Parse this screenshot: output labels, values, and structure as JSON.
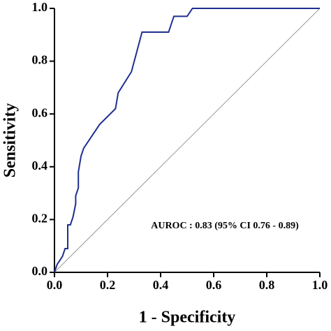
{
  "chart_data": {
    "type": "line",
    "x": [
      0,
      0.01,
      0.03,
      0.04,
      0.05,
      0.05,
      0.06,
      0.07,
      0.08,
      0.08,
      0.09,
      0.09,
      0.1,
      0.11,
      0.17,
      0.23,
      0.24,
      0.29,
      0.33,
      0.43,
      0.45,
      0.5,
      0.52,
      1.0
    ],
    "values": [
      0,
      0.03,
      0.06,
      0.09,
      0.09,
      0.18,
      0.18,
      0.21,
      0.26,
      0.29,
      0.32,
      0.38,
      0.44,
      0.47,
      0.56,
      0.62,
      0.68,
      0.76,
      0.91,
      0.91,
      0.97,
      0.97,
      1.0,
      1.0
    ],
    "color": "#1f2f8f",
    "xlabel": "1 - Specificity",
    "ylabel": "Sensitivity",
    "annotation": "AUROC : 0.83 (95% CI 0.76 - 0.89)",
    "xlim": [
      0,
      1
    ],
    "ylim": [
      0,
      1
    ],
    "xticks": [
      {
        "value": 0,
        "label": "0.0"
      },
      {
        "value": 0.2,
        "label": "0.2"
      },
      {
        "value": 0.4,
        "label": "0.4"
      },
      {
        "value": 0.6,
        "label": "0.6"
      },
      {
        "value": 0.8,
        "label": "0.8"
      },
      {
        "value": 1,
        "label": "1.0"
      }
    ],
    "yticks": [
      {
        "value": 0,
        "label": "0.0"
      },
      {
        "value": 0.2,
        "label": "0.2"
      },
      {
        "value": 0.4,
        "label": "0.4"
      },
      {
        "value": 0.6,
        "label": "0.6"
      },
      {
        "value": 0.8,
        "label": "0.8"
      },
      {
        "value": 1,
        "label": "1.0"
      }
    ],
    "reference_line": true,
    "grid": false
  }
}
